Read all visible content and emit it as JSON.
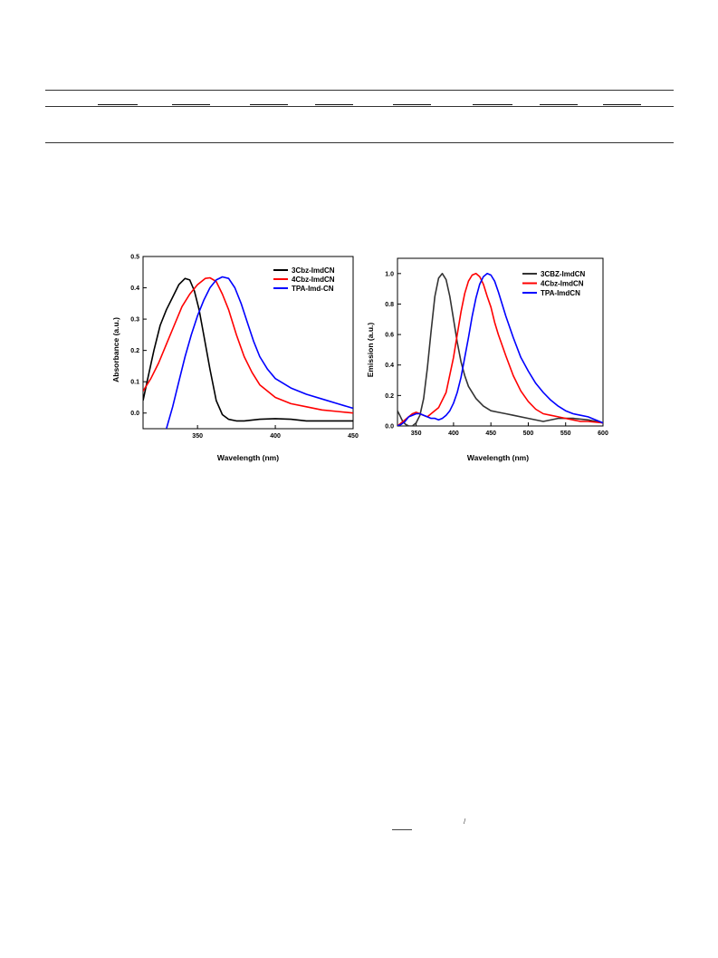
{
  "chart_data": [
    {
      "type": "line",
      "title": "",
      "xlabel": "Wavelength (nm)",
      "ylabel": "Absorbance (a.u.)",
      "xlim": [
        315,
        450
      ],
      "ylim": [
        -0.05,
        0.5
      ],
      "x_ticks": [
        350,
        400,
        450
      ],
      "y_ticks": [
        0.0,
        0.1,
        0.2,
        0.3,
        0.4,
        0.5
      ],
      "y_tick_labels": [
        "0.0",
        "0.1",
        "0.2",
        "0.3",
        "0.4",
        "0.5"
      ],
      "legend": "top-right",
      "grid": false,
      "series": [
        {
          "name": "3Cbz-ImdCN",
          "color": "#000000",
          "x": [
            315,
            318,
            322,
            326,
            330,
            334,
            338,
            342,
            345,
            348,
            351,
            354,
            358,
            362,
            366,
            370,
            375,
            380,
            390,
            400,
            410,
            420,
            430,
            440,
            450
          ],
          "y": [
            0.04,
            0.11,
            0.2,
            0.28,
            0.33,
            0.37,
            0.41,
            0.43,
            0.425,
            0.39,
            0.33,
            0.25,
            0.14,
            0.04,
            -0.005,
            -0.02,
            -0.025,
            -0.025,
            -0.02,
            -0.018,
            -0.02,
            -0.025,
            -0.025,
            -0.025,
            -0.025
          ]
        },
        {
          "name": "4Cbz-ImdCN",
          "color": "#ff0000",
          "x": [
            315,
            320,
            325,
            330,
            335,
            340,
            345,
            350,
            355,
            358,
            362,
            366,
            370,
            375,
            380,
            385,
            390,
            400,
            410,
            420,
            430,
            440,
            450
          ],
          "y": [
            0.07,
            0.11,
            0.16,
            0.22,
            0.28,
            0.34,
            0.38,
            0.41,
            0.43,
            0.432,
            0.42,
            0.38,
            0.33,
            0.25,
            0.18,
            0.13,
            0.09,
            0.05,
            0.03,
            0.02,
            0.01,
            0.005,
            0.0
          ]
        },
        {
          "name": "TPA-Imd-CN",
          "color": "#0000ff",
          "x": [
            330,
            334,
            338,
            342,
            346,
            350,
            354,
            358,
            362,
            366,
            370,
            374,
            378,
            382,
            386,
            390,
            395,
            400,
            410,
            420,
            430,
            440,
            450
          ],
          "y": [
            -0.05,
            0.02,
            0.1,
            0.18,
            0.25,
            0.31,
            0.36,
            0.4,
            0.425,
            0.435,
            0.43,
            0.4,
            0.35,
            0.29,
            0.23,
            0.18,
            0.14,
            0.11,
            0.08,
            0.06,
            0.045,
            0.03,
            0.015
          ]
        }
      ]
    },
    {
      "type": "line",
      "title": "",
      "xlabel": "Wavelength (nm)",
      "ylabel": "Emission (a.u.)",
      "xlim": [
        325,
        600
      ],
      "ylim": [
        0.0,
        1.1
      ],
      "x_ticks": [
        350,
        400,
        450,
        500,
        550,
        600
      ],
      "y_ticks": [
        0.0,
        0.2,
        0.4,
        0.6,
        0.8,
        1.0
      ],
      "y_tick_labels": [
        "0.0",
        "0.2",
        "0.4",
        "0.6",
        "0.8",
        "1.0"
      ],
      "legend": "top-right",
      "grid": false,
      "series": [
        {
          "name": "3CBZ-ImdCN",
          "color": "#333333",
          "x": [
            325,
            328,
            332,
            336,
            340,
            345,
            350,
            355,
            360,
            365,
            370,
            375,
            380,
            385,
            390,
            395,
            400,
            405,
            410,
            415,
            420,
            430,
            440,
            450,
            460,
            470,
            480,
            500,
            520,
            540,
            560,
            580,
            600
          ],
          "y": [
            0.1,
            0.07,
            0.03,
            0.01,
            0.0,
            0.0,
            0.02,
            0.07,
            0.18,
            0.38,
            0.62,
            0.85,
            0.97,
            1.0,
            0.96,
            0.85,
            0.7,
            0.55,
            0.42,
            0.33,
            0.26,
            0.18,
            0.13,
            0.1,
            0.09,
            0.08,
            0.07,
            0.05,
            0.03,
            0.05,
            0.05,
            0.04,
            0.02
          ]
        },
        {
          "name": "4Cbz-ImdCN",
          "color": "#ff0000",
          "x": [
            325,
            330,
            335,
            340,
            345,
            350,
            355,
            360,
            365,
            370,
            380,
            390,
            400,
            405,
            410,
            415,
            420,
            425,
            430,
            435,
            440,
            445,
            450,
            455,
            460,
            470,
            480,
            490,
            500,
            510,
            520,
            530,
            540,
            550,
            560,
            570,
            580,
            600
          ],
          "y": [
            0.0,
            0.02,
            0.04,
            0.06,
            0.08,
            0.09,
            0.08,
            0.07,
            0.06,
            0.08,
            0.12,
            0.22,
            0.45,
            0.6,
            0.75,
            0.87,
            0.95,
            0.99,
            1.0,
            0.98,
            0.93,
            0.85,
            0.78,
            0.68,
            0.6,
            0.46,
            0.33,
            0.23,
            0.16,
            0.11,
            0.08,
            0.07,
            0.06,
            0.05,
            0.04,
            0.03,
            0.03,
            0.02
          ]
        },
        {
          "name": "TPA-ImdCN",
          "color": "#0000ff",
          "x": [
            325,
            330,
            335,
            340,
            345,
            350,
            355,
            360,
            365,
            370,
            375,
            380,
            385,
            390,
            395,
            400,
            405,
            410,
            415,
            420,
            425,
            430,
            435,
            440,
            445,
            450,
            455,
            460,
            470,
            480,
            490,
            500,
            510,
            520,
            530,
            540,
            550,
            560,
            570,
            580,
            590,
            600
          ],
          "y": [
            0.0,
            0.01,
            0.03,
            0.06,
            0.07,
            0.08,
            0.08,
            0.07,
            0.06,
            0.05,
            0.05,
            0.04,
            0.05,
            0.07,
            0.1,
            0.15,
            0.22,
            0.32,
            0.45,
            0.58,
            0.72,
            0.84,
            0.93,
            0.98,
            1.0,
            0.99,
            0.95,
            0.88,
            0.72,
            0.58,
            0.45,
            0.36,
            0.28,
            0.22,
            0.17,
            0.13,
            0.1,
            0.08,
            0.07,
            0.06,
            0.04,
            0.02
          ]
        }
      ]
    }
  ]
}
